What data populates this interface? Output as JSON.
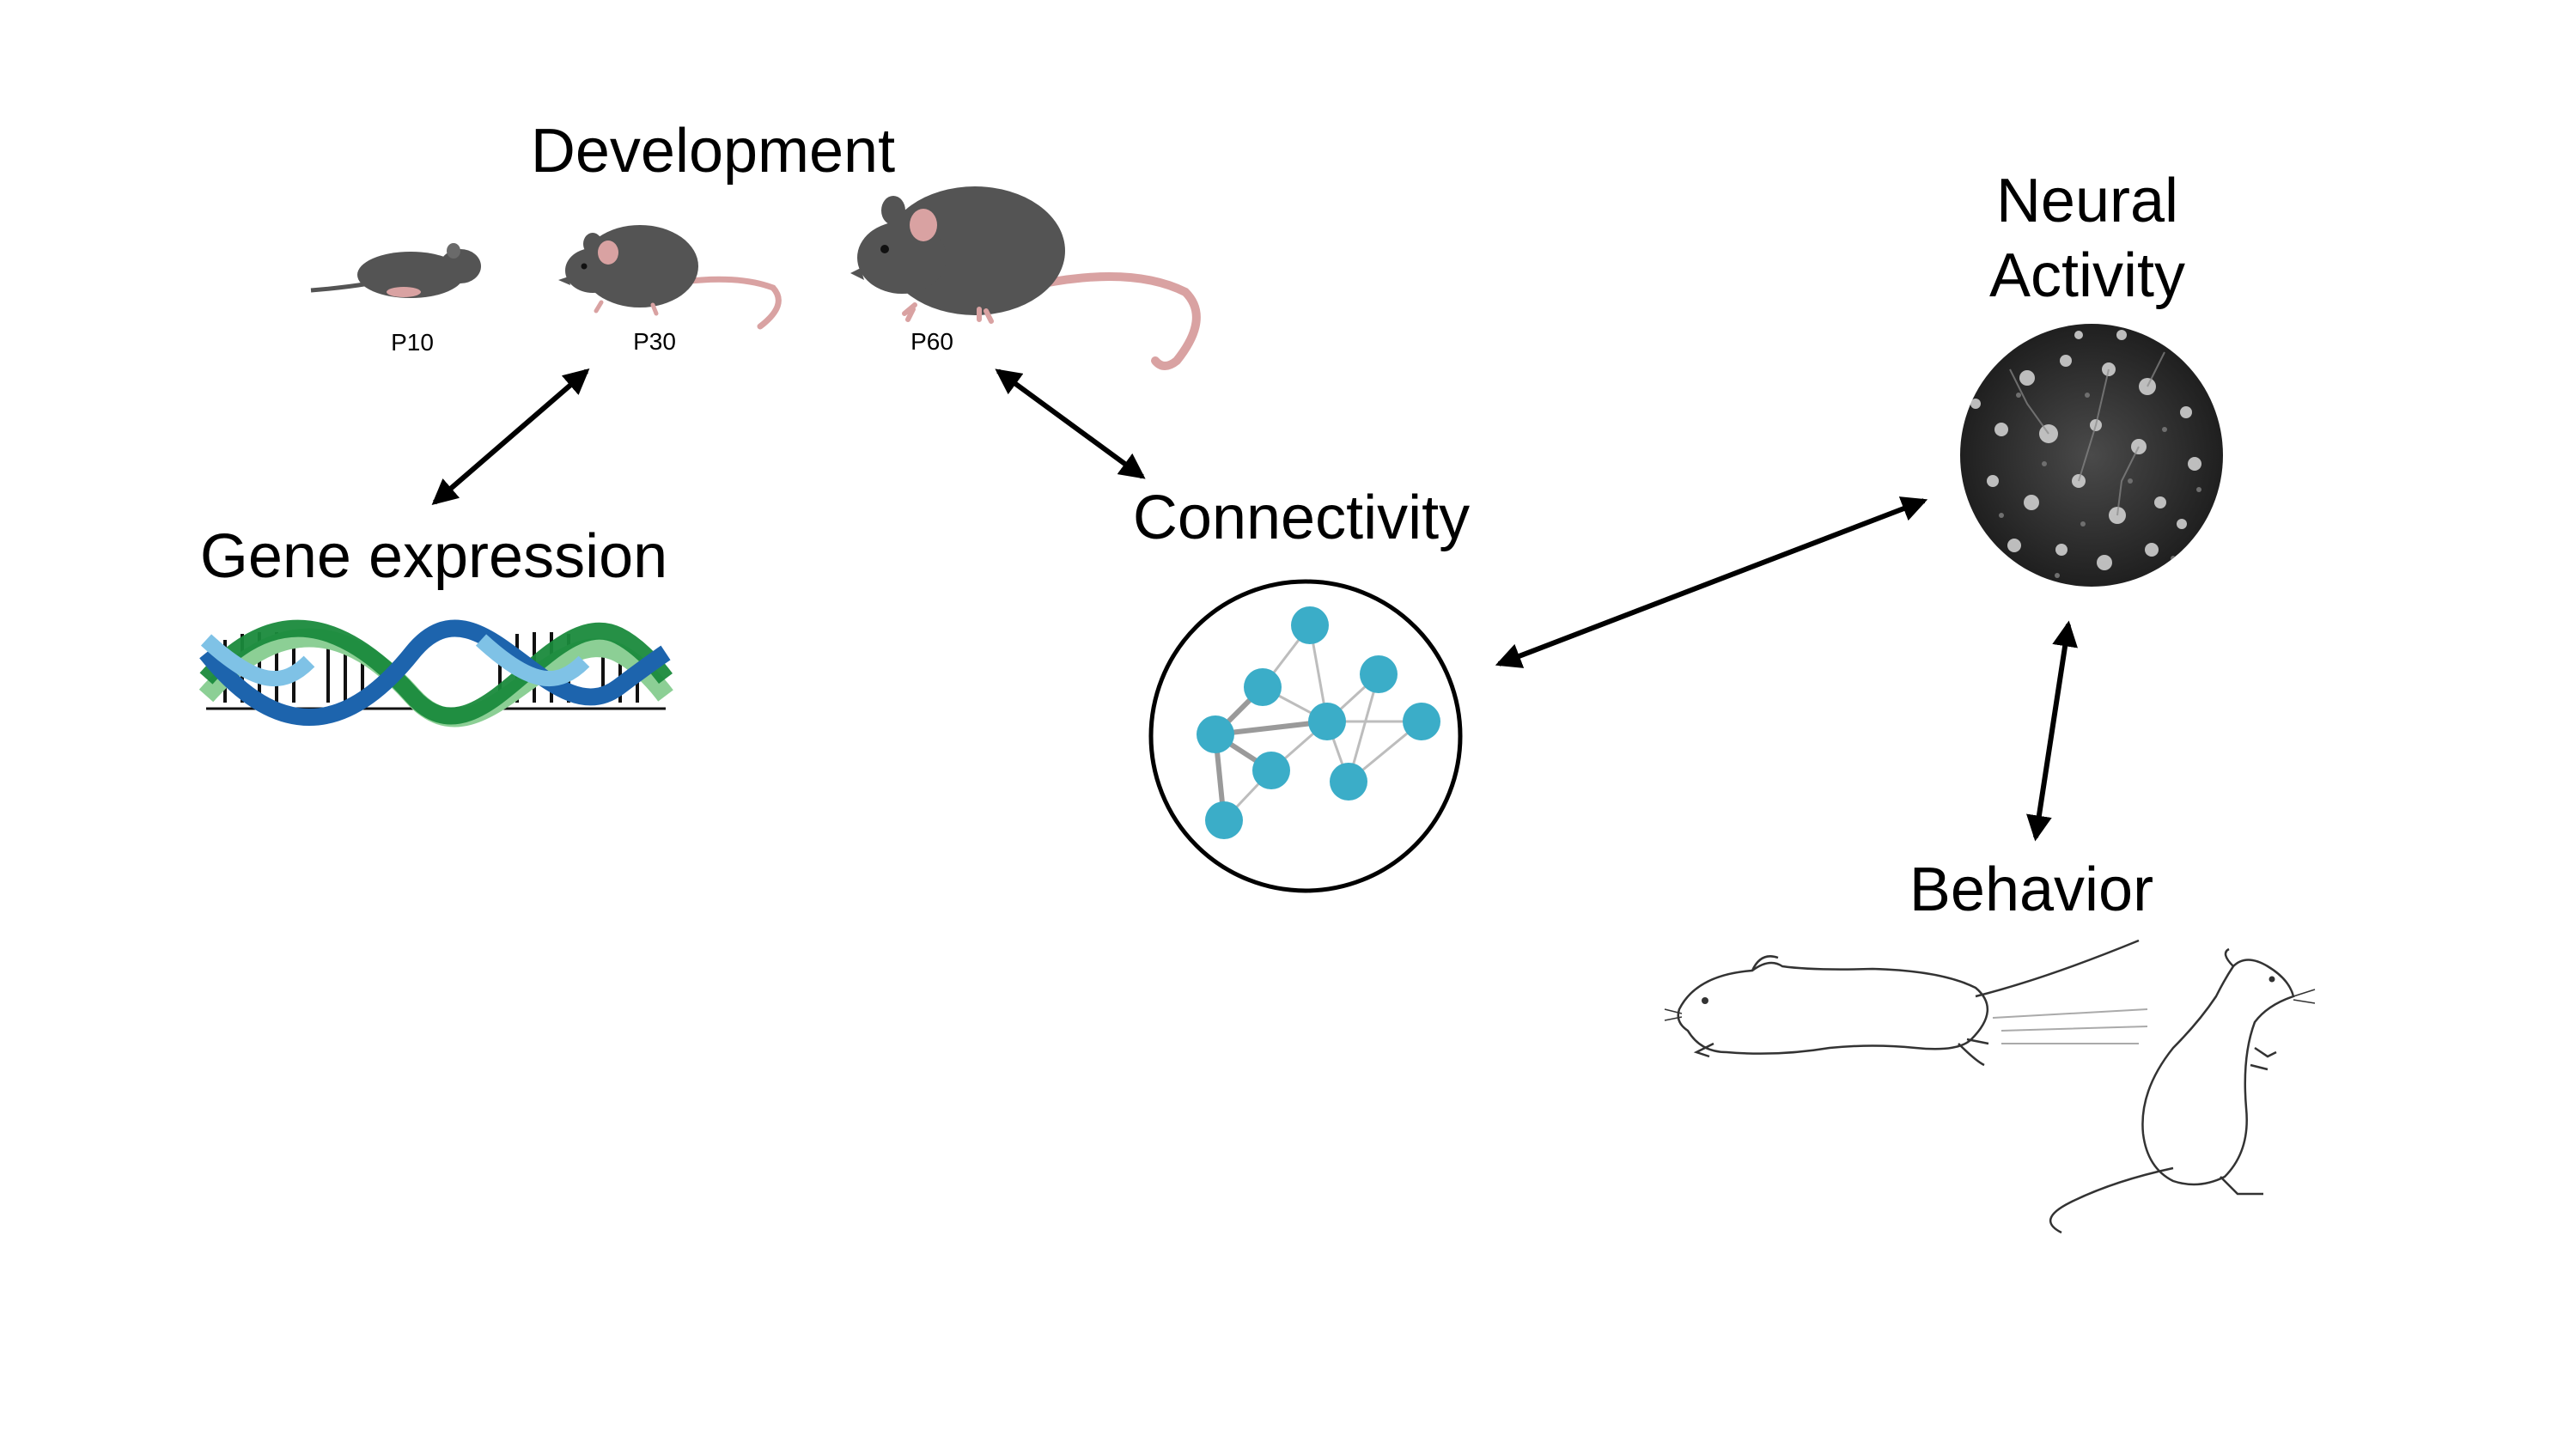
{
  "labels": {
    "development": "Development",
    "p10": "P10",
    "p30": "P30",
    "p60": "P60",
    "gene_expression": "Gene expression",
    "connectivity": "Connectivity",
    "neural_line1": "Neural",
    "neural_line2": "Activity",
    "behavior": "Behavior"
  },
  "colors": {
    "mouse_dark": "#545454",
    "mouse_pink": "#d9a2a2",
    "node": "#3badc8",
    "dna_light_blue": "#7fc2e6",
    "dna_blue": "#1d64ad",
    "dna_green": "#1a8a3c",
    "dna_light_green": "#8ccf95",
    "arrow": "#000000"
  }
}
